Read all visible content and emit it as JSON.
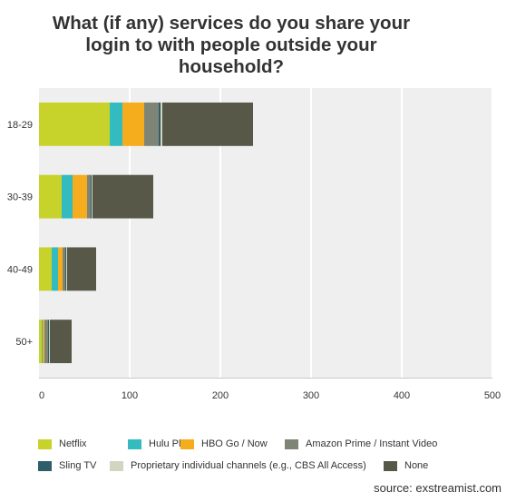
{
  "chart_data": {
    "type": "bar",
    "orientation": "horizontal",
    "stacked": true,
    "title_lines": [
      "What (if any) services do you share your",
      "login to with people outside your",
      "household?"
    ],
    "categories": [
      "18-29",
      "30-39",
      "40-49",
      "50+"
    ],
    "series": [
      {
        "name": "Netflix",
        "color": "#c7d22a",
        "values": [
          78,
          25,
          14,
          3
        ]
      },
      {
        "name": "Hulu Plus",
        "color": "#33bbbf",
        "values": [
          14,
          12,
          7,
          1
        ]
      },
      {
        "name": "HBO Go / Now",
        "color": "#f5ad1d",
        "values": [
          24,
          16,
          5,
          2
        ]
      },
      {
        "name": "Amazon Prime / Instant Video",
        "color": "#7f8576",
        "values": [
          16,
          4,
          3,
          4
        ]
      },
      {
        "name": "Sling TV",
        "color": "#2d5e6a",
        "values": [
          2,
          1,
          1,
          1
        ]
      },
      {
        "name": "Proprietary individual channels (e.g., CBS All Access)",
        "color": "#d2d5c0",
        "values": [
          2,
          1,
          1,
          1
        ]
      },
      {
        "name": "None",
        "color": "#575848",
        "values": [
          100,
          67,
          32,
          24
        ]
      }
    ],
    "x_ticks": [
      0,
      100,
      200,
      300,
      400,
      500
    ],
    "xlim": [
      0,
      500
    ],
    "grid": true,
    "legend_position": "bottom"
  },
  "source": "source: exstreamist.com"
}
